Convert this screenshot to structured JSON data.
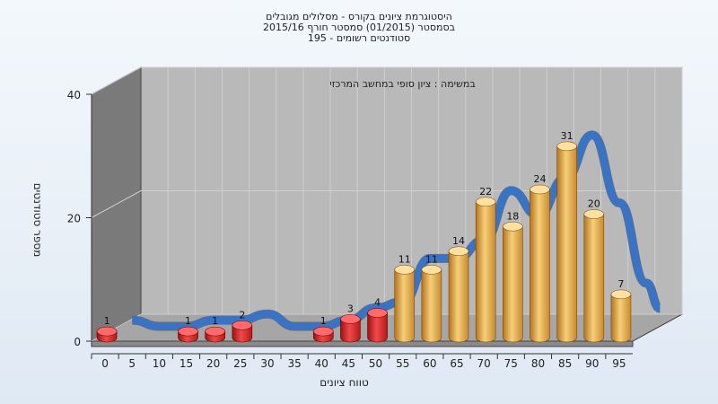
{
  "header": {
    "title_line1": "היסטוגרמת ציונים בקורס - מסלולים מגובלים",
    "title_line2": "בסמסטר  (01/2015)  סמסטר חורף 2015/16",
    "title_line3": "195 - סטודנטים רשומים"
  },
  "chart_data": {
    "type": "bar",
    "title": "היסטוגרמת ציונים בקורס - מסלולים מגובלים",
    "annotation": "במשימה : ציון סופי במחשב המרכזי",
    "xlabel": "טווח ציונים",
    "ylabel": "מספר סטודנטים",
    "ylim": [
      0,
      40
    ],
    "yticks": [
      0,
      20,
      40
    ],
    "x_ticks": [
      "0",
      "5",
      "10",
      "15",
      "20",
      "25",
      "30",
      "35",
      "40",
      "45",
      "50",
      "55",
      "60",
      "65",
      "70",
      "75",
      "80",
      "85",
      "90",
      "95"
    ],
    "bins": [
      0,
      5,
      10,
      15,
      20,
      25,
      30,
      35,
      40,
      45,
      50,
      55,
      60,
      65,
      70,
      75,
      80,
      85,
      90,
      95
    ],
    "values": [
      1,
      0,
      0,
      1,
      1,
      2,
      0,
      0,
      1,
      3,
      4,
      11,
      11,
      14,
      22,
      18,
      24,
      31,
      20,
      7
    ],
    "fail_color": "#d42020",
    "pass_color": "#e8a540",
    "curve_color": "#3a72c4",
    "pass_threshold": 55
  }
}
